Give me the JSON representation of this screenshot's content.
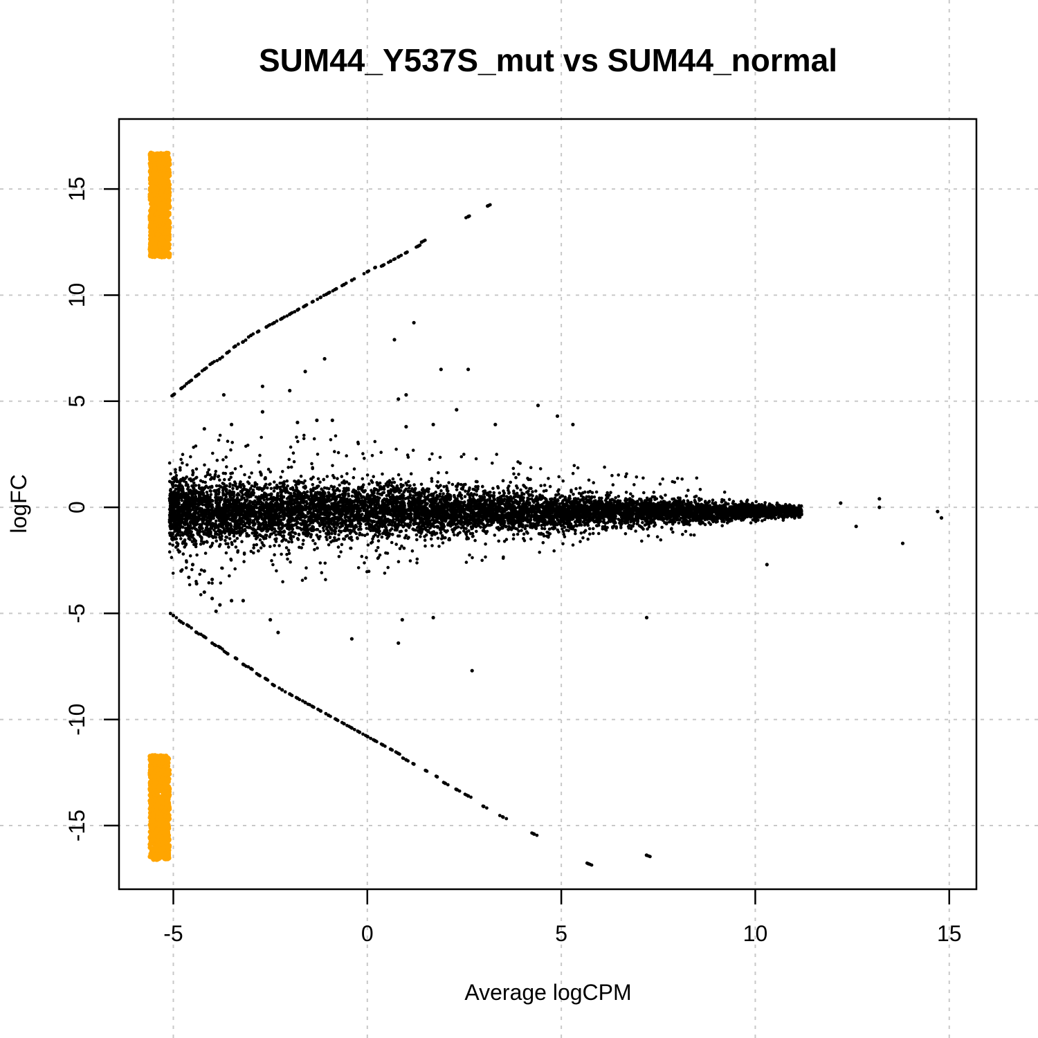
{
  "chart_data": {
    "type": "scatter",
    "title": "SUM44_Y537S_mut vs SUM44_normal",
    "xlabel": "Average logCPM",
    "ylabel": "logFC",
    "xlim": [
      -6.4,
      15.7
    ],
    "ylim": [
      -18.0,
      18.3
    ],
    "xticks": [
      -5,
      0,
      5,
      10,
      15
    ],
    "yticks": [
      -15,
      -10,
      -5,
      0,
      5,
      10,
      15
    ],
    "xtick_labels": [
      "-5",
      "0",
      "5",
      "10",
      "15"
    ],
    "ytick_labels": [
      "-15",
      "-10",
      "-5",
      "0",
      "5",
      "10",
      "15"
    ],
    "grid": true,
    "colors": {
      "points": "#000000",
      "highlight": "#FFA500",
      "grid": "#c8c8c8"
    },
    "series": [
      {
        "color": "#000000",
        "description_points": "upper diagonal band",
        "points": [
          [
            -5.0,
            5.3
          ],
          [
            -4.8,
            5.6
          ],
          [
            -4.6,
            5.9
          ],
          [
            -4.4,
            6.2
          ],
          [
            -4.2,
            6.5
          ],
          [
            -4.0,
            6.8
          ],
          [
            -3.8,
            7.0
          ],
          [
            -3.6,
            7.3
          ],
          [
            -3.4,
            7.6
          ],
          [
            -3.2,
            7.8
          ],
          [
            -3.0,
            8.1
          ],
          [
            -2.8,
            8.3
          ],
          [
            -2.6,
            8.5
          ],
          [
            -2.4,
            8.7
          ],
          [
            -2.2,
            8.9
          ],
          [
            -2.0,
            9.1
          ],
          [
            -1.8,
            9.3
          ],
          [
            -1.6,
            9.5
          ],
          [
            -1.4,
            9.7
          ],
          [
            -1.2,
            9.9
          ],
          [
            -1.0,
            10.1
          ],
          [
            -0.8,
            10.3
          ],
          [
            -0.6,
            10.5
          ],
          [
            -0.4,
            10.7
          ],
          [
            0.0,
            11.1
          ],
          [
            0.2,
            11.3
          ],
          [
            0.4,
            11.4
          ],
          [
            0.6,
            11.6
          ],
          [
            0.8,
            11.8
          ],
          [
            1.0,
            12.0
          ],
          [
            1.3,
            12.3
          ],
          [
            1.4,
            12.5
          ],
          [
            2.6,
            13.7
          ],
          [
            3.1,
            14.2
          ]
        ]
      },
      {
        "color": "#000000",
        "points": [
          [
            -5.0,
            -5.1
          ],
          [
            -4.8,
            -5.4
          ],
          [
            -4.6,
            -5.6
          ],
          [
            -4.4,
            -5.9
          ],
          [
            -4.2,
            -6.1
          ],
          [
            -4.0,
            -6.4
          ],
          [
            -3.8,
            -6.6
          ],
          [
            -3.6,
            -6.9
          ],
          [
            -3.4,
            -7.1
          ],
          [
            -3.2,
            -7.4
          ],
          [
            -3.0,
            -7.6
          ],
          [
            -2.8,
            -7.9
          ],
          [
            -2.6,
            -8.1
          ],
          [
            -2.4,
            -8.4
          ],
          [
            -2.2,
            -8.6
          ],
          [
            -2.0,
            -8.8
          ],
          [
            -1.8,
            -9.0
          ],
          [
            -1.6,
            -9.2
          ],
          [
            -1.4,
            -9.4
          ],
          [
            -1.2,
            -9.6
          ],
          [
            -1.0,
            -9.8
          ],
          [
            -0.8,
            -10.0
          ],
          [
            -0.6,
            -10.2
          ],
          [
            -0.4,
            -10.4
          ],
          [
            -0.2,
            -10.6
          ],
          [
            0.0,
            -10.8
          ],
          [
            0.2,
            -11.0
          ],
          [
            0.4,
            -11.2
          ],
          [
            0.6,
            -11.4
          ],
          [
            0.8,
            -11.6
          ],
          [
            1.0,
            -11.9
          ],
          [
            1.2,
            -12.1
          ],
          [
            1.5,
            -12.4
          ],
          [
            1.8,
            -12.7
          ],
          [
            2.0,
            -13.0
          ],
          [
            2.3,
            -13.3
          ],
          [
            2.6,
            -13.6
          ],
          [
            3.0,
            -14.1
          ],
          [
            3.5,
            -14.6
          ],
          [
            4.3,
            -15.4
          ],
          [
            5.7,
            -16.8
          ],
          [
            7.2,
            -16.4
          ]
        ]
      },
      {
        "color": "#000000",
        "points": [
          [
            -4.8,
            -3.0
          ],
          [
            -4.6,
            -3.3
          ],
          [
            -4.4,
            -3.6
          ],
          [
            -4.2,
            -4.0
          ],
          [
            -4.0,
            -4.3
          ],
          [
            -3.8,
            -4.6
          ],
          [
            -3.9,
            -4.9
          ],
          [
            -4.5,
            -2.7
          ],
          [
            -4.2,
            -3.0
          ],
          [
            -4.0,
            -3.4
          ],
          [
            -3.5,
            -4.4
          ],
          [
            -3.2,
            -4.4
          ],
          [
            -2.5,
            -5.3
          ],
          [
            -2.3,
            -5.9
          ],
          [
            -0.4,
            -6.2
          ],
          [
            0.8,
            -6.4
          ],
          [
            0.9,
            -5.3
          ],
          [
            1.7,
            -5.2
          ],
          [
            2.7,
            -7.7
          ],
          [
            7.2,
            -5.2
          ],
          [
            10.3,
            -2.7
          ],
          [
            13.8,
            -1.7
          ],
          [
            14.8,
            -0.5
          ],
          [
            14.7,
            -0.2
          ],
          [
            13.2,
            0.0
          ],
          [
            13.2,
            0.4
          ],
          [
            12.2,
            0.2
          ],
          [
            12.6,
            -0.9
          ],
          [
            -3.7,
            5.3
          ],
          [
            -2.7,
            5.7
          ],
          [
            -2.7,
            4.5
          ],
          [
            -2.0,
            5.5
          ],
          [
            -1.1,
            7.0
          ],
          [
            -1.6,
            6.4
          ],
          [
            -1.8,
            4.0
          ],
          [
            -1.3,
            4.1
          ],
          [
            -0.9,
            4.1
          ],
          [
            0.8,
            5.1
          ],
          [
            1.0,
            5.3
          ],
          [
            1.2,
            8.7
          ],
          [
            0.7,
            7.9
          ],
          [
            1.9,
            6.5
          ],
          [
            2.6,
            6.5
          ],
          [
            2.3,
            4.6
          ],
          [
            3.3,
            3.9
          ],
          [
            4.4,
            4.8
          ],
          [
            4.9,
            4.3
          ],
          [
            5.3,
            3.9
          ],
          [
            1.0,
            3.8
          ],
          [
            1.7,
            3.9
          ],
          [
            -3.5,
            3.9
          ],
          [
            -4.2,
            3.7
          ]
        ]
      },
      {
        "color": "#000000",
        "description_points": "dense central cloud",
        "cloud": {
          "x_range": [
            -5.1,
            11.2
          ],
          "y_center": -0.2,
          "y_spread_at_left": 2.0,
          "y_spread_at_right": 0.3
        }
      },
      {
        "color": "#FFA500",
        "points_range_upper": {
          "x": [
            -5.6,
            -5.1
          ],
          "y": [
            11.8,
            16.7
          ]
        },
        "points_range_lower": {
          "x": [
            -5.6,
            -5.1
          ],
          "y": [
            -16.6,
            -11.7
          ]
        }
      }
    ]
  }
}
